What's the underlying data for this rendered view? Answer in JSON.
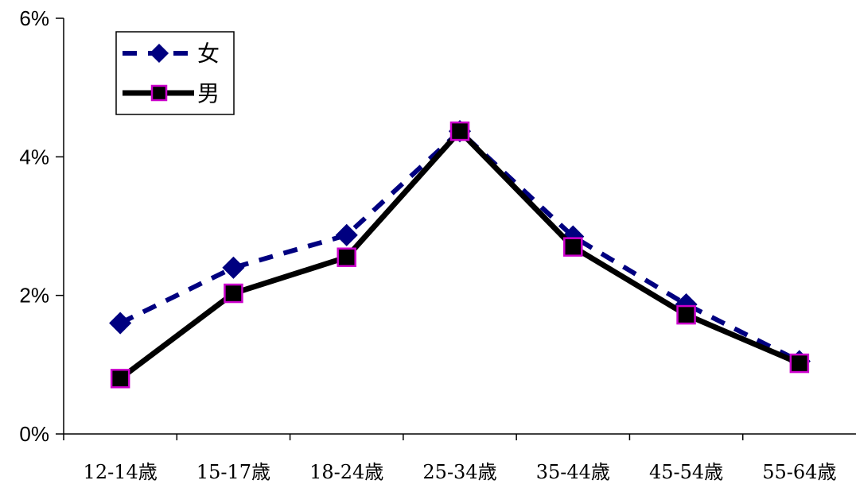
{
  "chart_data": {
    "type": "line",
    "title": "",
    "xlabel": "",
    "ylabel": "",
    "categories": [
      "12-14歳",
      "15-17歳",
      "18-24歳",
      "25-34歳",
      "35-44歳",
      "45-54歳",
      "55-64歳"
    ],
    "ylim": [
      0,
      6
    ],
    "yticks": [
      0,
      2,
      4,
      6
    ],
    "ytick_labels": [
      "0%",
      "2%",
      "4%",
      "6%"
    ],
    "grid": false,
    "legend_position": "top-left",
    "series": [
      {
        "name": "女",
        "values": [
          1.6,
          2.4,
          2.87,
          4.37,
          2.85,
          1.87,
          1.05
        ],
        "color": "#000080",
        "line_style": "dashed",
        "marker": "diamond",
        "marker_fill": "#000080",
        "marker_edge": "#000080"
      },
      {
        "name": "男",
        "values": [
          0.8,
          2.03,
          2.55,
          4.37,
          2.7,
          1.72,
          1.02
        ],
        "color": "#000000",
        "line_style": "solid",
        "marker": "square",
        "marker_fill": "#000000",
        "marker_edge": "#cc00cc"
      }
    ]
  }
}
